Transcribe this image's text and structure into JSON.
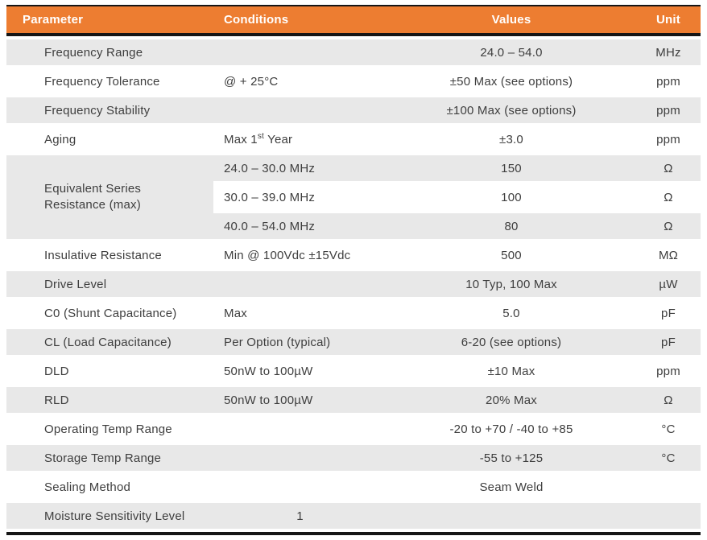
{
  "header": {
    "parameter": "Parameter",
    "conditions": "Conditions",
    "values": "Values",
    "unit": "Unit"
  },
  "colors": {
    "header_bg": "#ED7D31",
    "header_text": "#FFFFFF",
    "alt_row_bg": "#E8E8E8",
    "border": "#161616",
    "body_text": "#3E3E3E"
  },
  "rows": [
    {
      "parameter": "Frequency Range",
      "conditions": "",
      "value": "24.0 – 54.0",
      "unit": "MHz"
    },
    {
      "parameter": "Frequency Tolerance",
      "conditions": "@ + 25°C",
      "value": "±50 Max (see options)",
      "unit": "ppm"
    },
    {
      "parameter": "Frequency Stability",
      "conditions": "",
      "value": "±100 Max (see options)",
      "unit": "ppm"
    },
    {
      "parameter": "Aging",
      "cond_pre": "Max 1",
      "cond_sup": "st",
      "cond_post": " Year",
      "value": "±3.0",
      "unit": "ppm"
    },
    {
      "parameter_line1": "Equivalent Series",
      "parameter_line2": "Resistance (max)",
      "conditions": "24.0 – 30.0 MHz",
      "value": "150",
      "unit": "Ω"
    },
    {
      "conditions": "30.0 – 39.0 MHz",
      "value": "100",
      "unit": "Ω"
    },
    {
      "conditions": "40.0 – 54.0 MHz",
      "value": "80",
      "unit": "Ω"
    },
    {
      "parameter": "Insulative Resistance",
      "conditions": "Min @ 100Vdc ±15Vdc",
      "value": "500",
      "unit": "MΩ"
    },
    {
      "parameter": "Drive Level",
      "conditions": "",
      "value": "10 Typ, 100 Max",
      "unit": "µW"
    },
    {
      "parameter": "C0 (Shunt Capacitance)",
      "conditions": "Max",
      "value": "5.0",
      "unit": "pF"
    },
    {
      "parameter": "CL (Load Capacitance)",
      "conditions": "Per Option (typical)",
      "value": "6-20 (see options)",
      "unit": "pF"
    },
    {
      "parameter": "DLD",
      "conditions": "50nW to 100µW",
      "value": "±10 Max",
      "unit": "ppm"
    },
    {
      "parameter": "RLD",
      "conditions": "50nW to 100µW",
      "value": "20% Max",
      "unit": "Ω"
    },
    {
      "parameter": "Operating Temp Range",
      "conditions": "",
      "value": "-20 to +70 / -40 to +85",
      "unit": "°C"
    },
    {
      "parameter": "Storage Temp Range",
      "conditions": "",
      "value": "-55 to +125",
      "unit": "°C"
    },
    {
      "parameter": "Sealing Method",
      "conditions": "",
      "value": "Seam Weld",
      "unit": ""
    },
    {
      "parameter": "Moisture Sensitivity Level",
      "conditions": "1",
      "value": "",
      "unit": ""
    }
  ]
}
